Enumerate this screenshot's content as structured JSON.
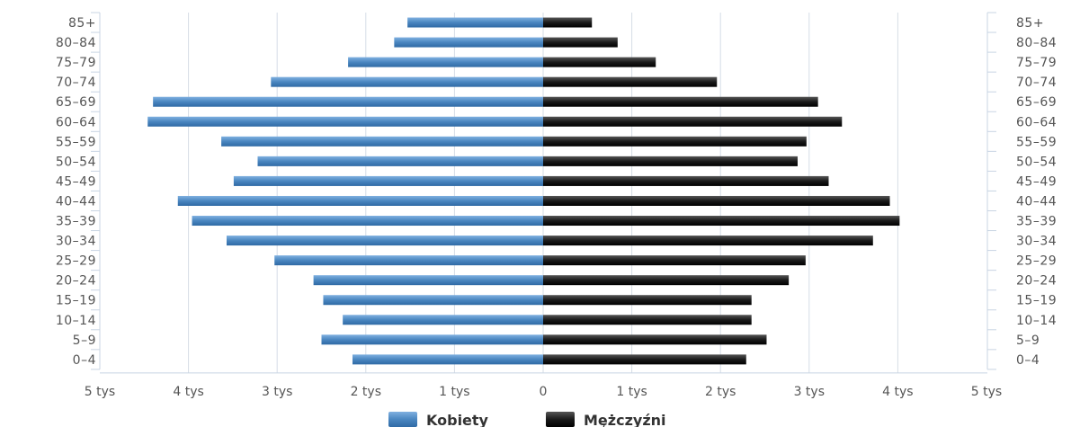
{
  "chart_data": {
    "type": "bar",
    "orientation": "horizontal",
    "layout": "population-pyramid",
    "categories": [
      "85+",
      "80-84",
      "75-79",
      "70-74",
      "65-69",
      "60-64",
      "55-59",
      "50-54",
      "45-49",
      "40-44",
      "35-39",
      "30-34",
      "25-29",
      "20-24",
      "15-19",
      "10-14",
      "5-9",
      "0-4"
    ],
    "category_labels": [
      "85+",
      "80–84",
      "75–79",
      "70–74",
      "65–69",
      "60–64",
      "55–59",
      "50–54",
      "45–49",
      "40–44",
      "35–39",
      "30–34",
      "25–29",
      "20–24",
      "15–19",
      "10–14",
      "5–9",
      "0–4"
    ],
    "series": [
      {
        "name": "Kobiety",
        "color": "#4a86c0",
        "side": "left",
        "values": [
          1530,
          1680,
          2200,
          3070,
          4400,
          4460,
          3630,
          3220,
          3490,
          4120,
          3960,
          3570,
          3030,
          2590,
          2480,
          2260,
          2500,
          2150
        ]
      },
      {
        "name": "Mężczyźni",
        "color": "#1a1a1a",
        "side": "right",
        "values": [
          550,
          840,
          1270,
          1960,
          3100,
          3370,
          2970,
          2870,
          3220,
          3910,
          4020,
          3720,
          2960,
          2770,
          2350,
          2350,
          2520,
          2290
        ]
      }
    ],
    "x_axis": {
      "ticks": [
        -5000,
        -4000,
        -3000,
        -2000,
        -1000,
        0,
        1000,
        2000,
        3000,
        4000,
        5000
      ],
      "tick_labels": [
        "5 tys",
        "4 tys",
        "3 tys",
        "2 tys",
        "1 tys",
        "0",
        "1 tys",
        "2 tys",
        "3 tys",
        "4 tys",
        "5 tys"
      ],
      "range": [
        -5000,
        5000
      ]
    },
    "grid": true,
    "legend_placement": "bottom-center"
  }
}
